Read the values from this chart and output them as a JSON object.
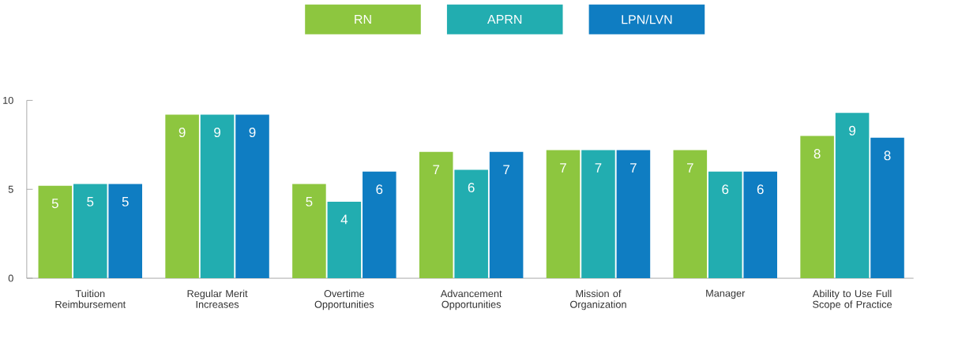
{
  "chart_data": {
    "type": "bar",
    "categories": [
      "Tuition Reimbursement",
      "Regular Merit Increases",
      "Overtime Opportunities",
      "Advancement Opportunities",
      "Mission of Organization",
      "Manager",
      "Ability to Use Full Scope of Practice"
    ],
    "series": [
      {
        "name": "RN",
        "color": "#8dc63f",
        "values": [
          5.2,
          9.2,
          5.3,
          7.1,
          7.2,
          7.2,
          8.0
        ],
        "value_labels": [
          "5",
          "9",
          "5",
          "7",
          "7",
          "7",
          "8"
        ]
      },
      {
        "name": "APRN",
        "color": "#22adb0",
        "values": [
          5.3,
          9.2,
          4.3,
          6.1,
          7.2,
          6.0,
          9.3
        ],
        "value_labels": [
          "5",
          "9",
          "4",
          "6",
          "7",
          "6",
          "9"
        ]
      },
      {
        "name": "LPN/LVN",
        "color": "#0f7dc2",
        "values": [
          5.3,
          9.2,
          6.0,
          7.1,
          7.2,
          6.0,
          7.9
        ],
        "value_labels": [
          "5",
          "9",
          "6",
          "7",
          "7",
          "6",
          "8"
        ]
      }
    ],
    "ylim": [
      0,
      10
    ],
    "yticks": [
      0,
      5,
      10
    ],
    "legend": "top",
    "grid": false
  }
}
